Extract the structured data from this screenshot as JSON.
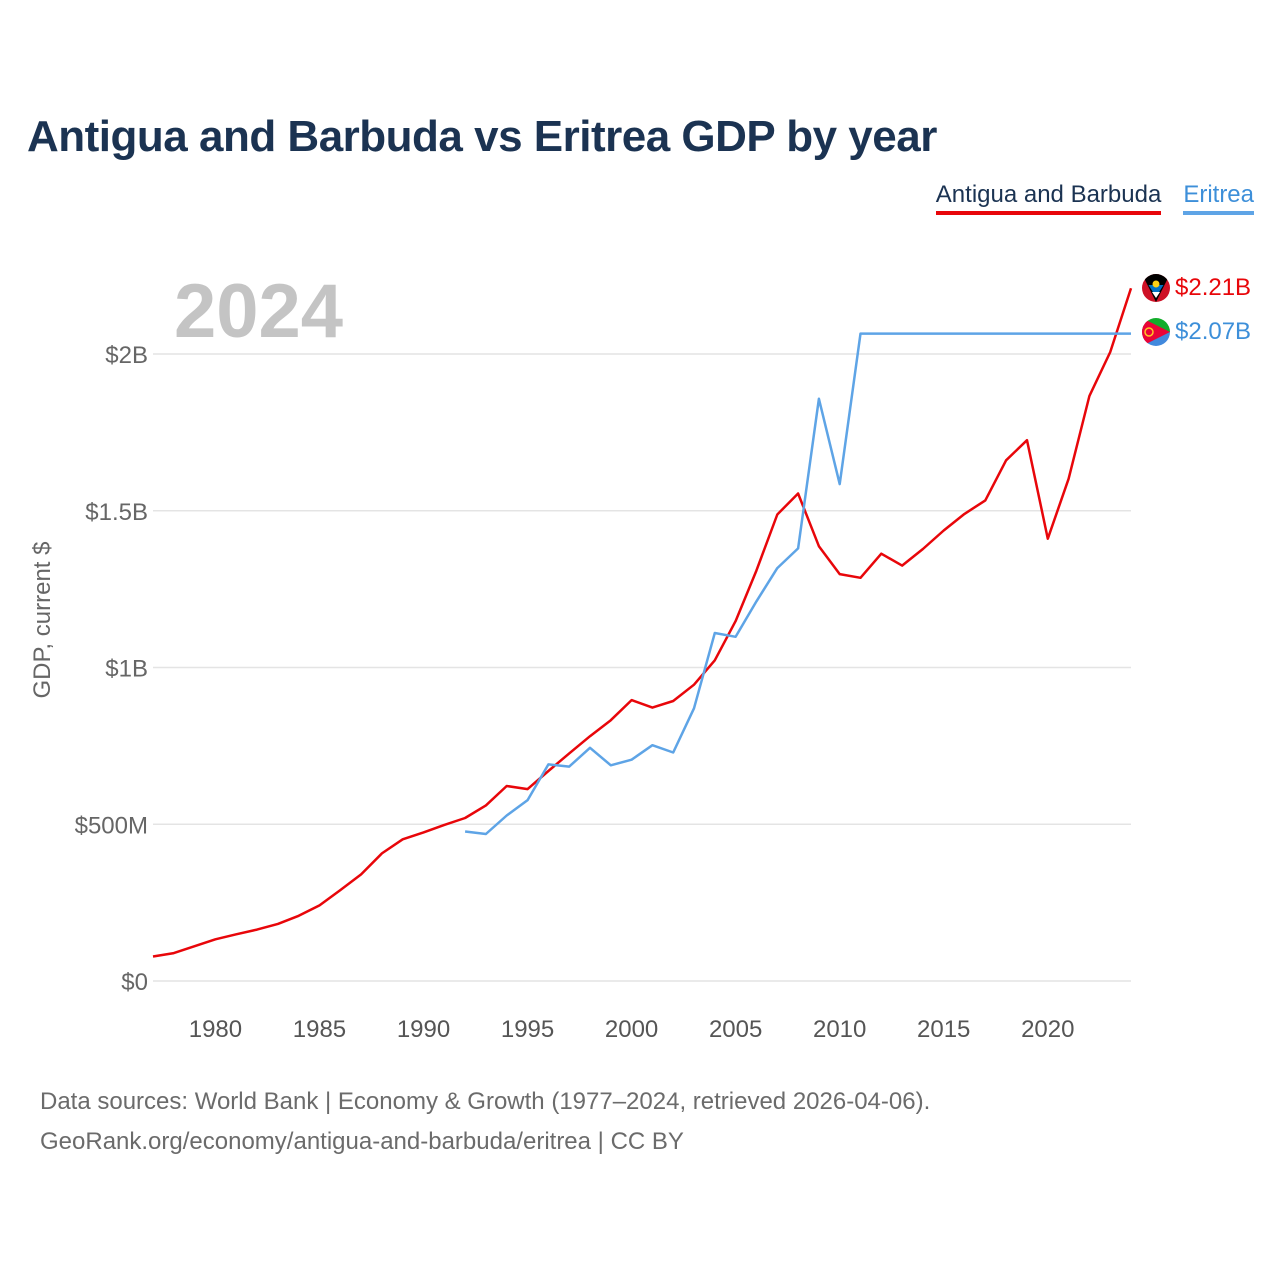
{
  "title": "Antigua and Barbuda vs Eritrea GDP by year",
  "legend": {
    "series1": "Antigua and Barbuda",
    "series2": "Eritrea"
  },
  "year_watermark": "2024",
  "end_labels": {
    "series1": "$2.21B",
    "series2": "$2.07B"
  },
  "source": {
    "line1": "Data sources: World Bank | Economy & Growth (1977–2024, retrieved 2026-04-06).",
    "line2": "GeoRank.org/economy/antigua-and-barbuda/eritrea | CC BY"
  },
  "colors": {
    "series1": "#e8060a",
    "series2": "#5ea4e6",
    "title": "#1b3352"
  },
  "chart_data": {
    "type": "line",
    "title": "Antigua and Barbuda vs Eritrea GDP by year",
    "xlabel": "",
    "ylabel": "GDP, current $",
    "xlim": [
      1977,
      2024
    ],
    "ylim": [
      0,
      2250000000
    ],
    "x_ticks": [
      1980,
      1985,
      1990,
      1995,
      2000,
      2005,
      2010,
      2015,
      2020
    ],
    "x_tick_labels": [
      "1980",
      "1985",
      "1990",
      "1995",
      "2000",
      "2005",
      "2010",
      "2015",
      "2020"
    ],
    "y_ticks": [
      0,
      500000000,
      1000000000,
      1500000000,
      2000000000
    ],
    "y_tick_labels": [
      "$0",
      "$500M",
      "$1B",
      "$1.5B",
      "$2B"
    ],
    "grid": true,
    "series": [
      {
        "name": "Antigua and Barbuda",
        "color": "#e8060a",
        "x": [
          1977,
          1978,
          1979,
          1980,
          1981,
          1982,
          1983,
          1984,
          1985,
          1986,
          1987,
          1988,
          1989,
          1990,
          1991,
          1992,
          1993,
          1994,
          1995,
          1996,
          1997,
          1998,
          1999,
          2000,
          2001,
          2002,
          2003,
          2004,
          2005,
          2006,
          2007,
          2008,
          2009,
          2010,
          2011,
          2012,
          2013,
          2014,
          2015,
          2016,
          2017,
          2018,
          2019,
          2020,
          2021,
          2022,
          2023,
          2024
        ],
        "values": [
          78000000,
          89000000,
          111000000,
          133000000,
          149000000,
          164000000,
          182000000,
          208000000,
          241000000,
          290000000,
          340000000,
          407000000,
          452000000,
          474000000,
          498000000,
          520000000,
          560000000,
          622000000,
          612000000,
          670000000,
          726000000,
          781000000,
          832000000,
          896000000,
          872000000,
          893000000,
          945000000,
          1023000000,
          1148000000,
          1309000000,
          1488000000,
          1555000000,
          1387000000,
          1298000000,
          1286000000,
          1363000000,
          1325000000,
          1378000000,
          1437000000,
          1490000000,
          1533000000,
          1661000000,
          1725000000,
          1411000000,
          1602000000,
          1866000000,
          2006000000,
          2210000000
        ]
      },
      {
        "name": "Eritrea",
        "color": "#5ea4e6",
        "x": [
          1992,
          1993,
          1994,
          1995,
          1996,
          1997,
          1998,
          1999,
          2000,
          2001,
          2002,
          2003,
          2004,
          2005,
          2006,
          2007,
          2008,
          2009,
          2010,
          2011,
          2012,
          2013,
          2014,
          2015,
          2016,
          2017,
          2018,
          2019,
          2020,
          2021,
          2022,
          2023,
          2024
        ],
        "values": [
          477000000,
          469000000,
          528000000,
          577000000,
          691000000,
          684000000,
          744000000,
          688000000,
          706000000,
          752000000,
          729000000,
          870000000,
          1110000000,
          1098000000,
          1211000000,
          1317000000,
          1380000000,
          1857000000,
          1585000000,
          2065000000,
          2065000000,
          2065000000,
          2065000000,
          2065000000,
          2065000000,
          2065000000,
          2065000000,
          2065000000,
          2065000000,
          2065000000,
          2065000000,
          2065000000,
          2065000000
        ]
      }
    ]
  }
}
